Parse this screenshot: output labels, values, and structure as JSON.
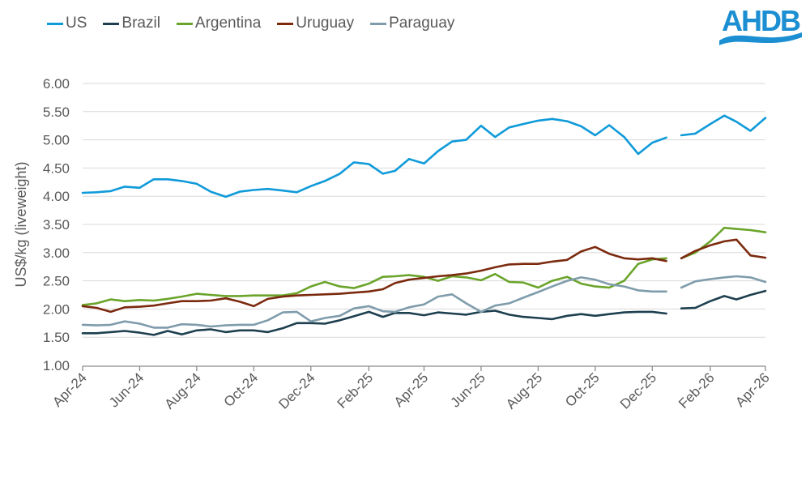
{
  "logo": {
    "text": "AHDB",
    "color": "#1b8fd2"
  },
  "chart_data": {
    "type": "line",
    "title": "",
    "ylabel": "US$/kg (liveweight)",
    "xlabel": "",
    "ylim": [
      1.0,
      6.0
    ],
    "yticks": [
      "1.00",
      "1.50",
      "2.00",
      "2.50",
      "3.00",
      "3.50",
      "4.00",
      "4.50",
      "5.00",
      "5.50",
      "6.00"
    ],
    "xlim": [
      "2024-04-01",
      "2026-04-01"
    ],
    "xticks": [
      {
        "date": "2024-04-01",
        "label": "Apr-24"
      },
      {
        "date": "2024-06-01",
        "label": "Jun-24"
      },
      {
        "date": "2024-08-01",
        "label": "Aug-24"
      },
      {
        "date": "2024-10-01",
        "label": "Oct-24"
      },
      {
        "date": "2024-12-01",
        "label": "Dec-24"
      },
      {
        "date": "2025-02-01",
        "label": "Feb-25"
      },
      {
        "date": "2025-04-01",
        "label": "Apr-25"
      },
      {
        "date": "2025-06-01",
        "label": "Jun-25"
      },
      {
        "date": "2025-08-01",
        "label": "Aug-25"
      },
      {
        "date": "2025-10-01",
        "label": "Oct-25"
      },
      {
        "date": "2025-12-01",
        "label": "Dec-25"
      },
      {
        "date": "2026-02-01",
        "label": "Feb-26"
      },
      {
        "date": "2026-04-01",
        "label": "Apr-26"
      }
    ],
    "grid": "horizontal",
    "legend_position": "top",
    "x_segments": [
      [
        "2024-04-01",
        "2024-04-16",
        "2024-05-01",
        "2024-05-16",
        "2024-06-01",
        "2024-06-16",
        "2024-07-01",
        "2024-07-16",
        "2024-08-01",
        "2024-08-16",
        "2024-09-01",
        "2024-09-16",
        "2024-10-01",
        "2024-10-16",
        "2024-11-01",
        "2024-11-16",
        "2024-12-01",
        "2024-12-16",
        "2025-01-01",
        "2025-01-16",
        "2025-02-01",
        "2025-02-16",
        "2025-03-01",
        "2025-03-16",
        "2025-04-01",
        "2025-04-16",
        "2025-05-01",
        "2025-05-16",
        "2025-06-01",
        "2025-06-16",
        "2025-07-01",
        "2025-07-16",
        "2025-08-01",
        "2025-08-16",
        "2025-09-01",
        "2025-09-16",
        "2025-10-01",
        "2025-10-16",
        "2025-11-01",
        "2025-11-16",
        "2025-12-01",
        "2025-12-16"
      ],
      [
        "2026-01-01",
        "2026-01-16",
        "2026-02-01",
        "2026-02-16",
        "2026-03-01",
        "2026-03-16",
        "2026-04-01"
      ]
    ],
    "series": [
      {
        "name": "US",
        "color": "#0f9ad9",
        "values": [
          [
            4.06,
            4.07,
            4.09,
            4.17,
            4.15,
            4.3,
            4.3,
            4.27,
            4.22,
            4.08,
            3.99,
            4.08,
            4.11,
            4.13,
            4.1,
            4.07,
            4.18,
            4.27,
            4.4,
            4.6,
            4.57,
            4.4,
            4.45,
            4.66,
            4.58,
            4.8,
            4.97,
            5.0,
            5.25,
            5.05,
            5.22,
            5.28,
            5.34,
            5.37,
            5.33,
            5.24,
            5.08,
            5.26,
            5.05,
            4.75,
            4.95,
            5.04
          ],
          [
            5.08,
            5.11,
            5.28,
            5.43,
            5.32,
            5.16,
            5.39
          ]
        ]
      },
      {
        "name": "Brazil",
        "color": "#1d3f4f",
        "values": [
          [
            1.57,
            1.57,
            1.59,
            1.61,
            1.58,
            1.54,
            1.61,
            1.55,
            1.62,
            1.64,
            1.59,
            1.62,
            1.62,
            1.59,
            1.66,
            1.75,
            1.75,
            1.74,
            1.8,
            1.87,
            1.95,
            1.86,
            1.93,
            1.93,
            1.89,
            1.94,
            1.92,
            1.9,
            1.95,
            1.97,
            1.9,
            1.86,
            1.84,
            1.82,
            1.88,
            1.91,
            1.88,
            1.91,
            1.94,
            1.95,
            1.95,
            1.92
          ],
          [
            2.01,
            2.02,
            2.14,
            2.23,
            2.17,
            2.25,
            2.32
          ]
        ]
      },
      {
        "name": "Argentina",
        "color": "#6aa42a",
        "values": [
          [
            2.07,
            2.1,
            2.17,
            2.14,
            2.16,
            2.15,
            2.18,
            2.22,
            2.27,
            2.25,
            2.23,
            2.23,
            2.24,
            2.24,
            2.24,
            2.28,
            2.4,
            2.48,
            2.4,
            2.37,
            2.45,
            2.57,
            2.58,
            2.6,
            2.57,
            2.5,
            2.58,
            2.56,
            2.51,
            2.62,
            2.48,
            2.47,
            2.38,
            2.5,
            2.57,
            2.45,
            2.4,
            2.38,
            2.5,
            2.8,
            2.88,
            2.9
          ],
          [
            2.9,
            3.0,
            3.2,
            3.44,
            3.42,
            3.4,
            3.36
          ]
        ]
      },
      {
        "name": "Uruguay",
        "color": "#7b2a0e",
        "values": [
          [
            2.05,
            2.02,
            1.95,
            2.03,
            2.04,
            2.06,
            2.1,
            2.14,
            2.14,
            2.15,
            2.19,
            2.13,
            2.05,
            2.18,
            2.22,
            2.24,
            2.25,
            2.26,
            2.27,
            2.29,
            2.31,
            2.35,
            2.46,
            2.52,
            2.55,
            2.58,
            2.6,
            2.63,
            2.68,
            2.74,
            2.79,
            2.8,
            2.8,
            2.84,
            2.87,
            3.02,
            3.1,
            2.98,
            2.9,
            2.88,
            2.9,
            2.85
          ],
          [
            2.9,
            3.03,
            3.13,
            3.2,
            3.23,
            2.95,
            2.91
          ]
        ]
      },
      {
        "name": "Paraguay",
        "color": "#7f9cab",
        "values": [
          [
            1.72,
            1.71,
            1.72,
            1.78,
            1.74,
            1.67,
            1.67,
            1.73,
            1.72,
            1.69,
            1.71,
            1.72,
            1.72,
            1.8,
            1.94,
            1.95,
            1.78,
            1.84,
            1.88,
            2.01,
            2.05,
            1.96,
            1.95,
            2.03,
            2.08,
            2.22,
            2.26,
            2.1,
            1.95,
            2.06,
            2.1,
            2.2,
            2.3,
            2.4,
            2.5,
            2.56,
            2.52,
            2.44,
            2.4,
            2.33,
            2.31,
            2.31
          ],
          [
            2.38,
            2.49,
            2.53,
            2.56,
            2.58,
            2.56,
            2.48
          ]
        ]
      }
    ]
  }
}
